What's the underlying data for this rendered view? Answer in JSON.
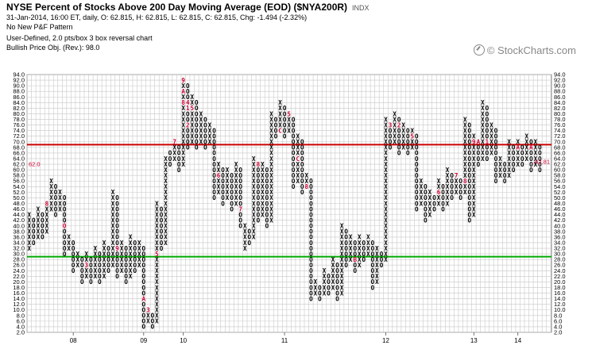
{
  "header": {
    "title": "NYSE Percent of Stocks Above 200 Day Moving Average (EOD) ($NYA200R)",
    "exchange_tag": "INDX",
    "line2": "31-Jan-2014, 16:00 ET, daily, O: 62.815, H: 62.815, L: 62.815, C: 62.815, Chg: -1.494 (-2.32%)",
    "line3": "No New P&F Pattern",
    "line4": "User-Defined, 2.0 pts/box 3 box reversal chart",
    "line5": "Bullish Price Obj. (Rev.): 98.0"
  },
  "watermark": "© StockCharts.com",
  "colors": {
    "x_mark": "#000000",
    "o_mark": "#000000",
    "month_mark": "#cc0033",
    "resistance_line": "#cc0000",
    "support_line": "#00aa00",
    "grid": "#c8c8c8",
    "last_price": "#cc0033"
  },
  "chart_data": {
    "type": "point_and_figure",
    "box_size": 2.0,
    "reversal": 3,
    "ylim": [
      2,
      94
    ],
    "y_ticks": [
      2.0,
      4.0,
      6.0,
      8.0,
      10.0,
      12.0,
      14.0,
      16.0,
      18.0,
      20.0,
      22.0,
      24.0,
      26.0,
      28.0,
      30.0,
      32.0,
      34.0,
      36.0,
      38.0,
      40.0,
      42.0,
      44.0,
      46.0,
      48.0,
      50.0,
      52.0,
      54.0,
      56.0,
      58.0,
      60.0,
      62.0,
      64.0,
      66.0,
      68.0,
      70.0,
      72.0,
      74.0,
      76.0,
      78.0,
      80.0,
      82.0,
      84.0,
      86.0,
      88.0,
      90.0,
      92.0,
      94.0
    ],
    "x_tick_labels": [
      "08",
      "09",
      "10",
      "11",
      "12",
      "13",
      "14"
    ],
    "resistance_level": 69,
    "support_level": 29,
    "last_price": 62.81,
    "left_price_label": "62.0",
    "right_price_label": "62.81",
    "columns": [
      {
        "type": "X",
        "low": 32,
        "high": 44
      },
      {
        "type": "O",
        "low": 34,
        "high": 42
      },
      {
        "type": "X",
        "low": 36,
        "high": 46
      },
      {
        "type": "O",
        "low": 36,
        "high": 44
      },
      {
        "type": "X",
        "low": 38,
        "high": 48
      },
      {
        "type": "X",
        "low": 46,
        "high": 56
      },
      {
        "type": "O",
        "low": 44,
        "high": 54
      },
      {
        "type": "X",
        "low": 46,
        "high": 52
      },
      {
        "type": "O",
        "low": 30,
        "high": 50
      },
      {
        "type": "X",
        "low": 32,
        "high": 36
      },
      {
        "type": "O",
        "low": 24,
        "high": 34
      },
      {
        "type": "X",
        "low": 26,
        "high": 30
      },
      {
        "type": "O",
        "low": 20,
        "high": 28
      },
      {
        "type": "X",
        "low": 22,
        "high": 30
      },
      {
        "type": "O",
        "low": 20,
        "high": 28
      },
      {
        "type": "X",
        "low": 22,
        "high": 32
      },
      {
        "type": "O",
        "low": 20,
        "high": 30
      },
      {
        "type": "X",
        "low": 22,
        "high": 34
      },
      {
        "type": "O",
        "low": 24,
        "high": 32
      },
      {
        "type": "X",
        "low": 26,
        "high": 52
      },
      {
        "type": "O",
        "low": 22,
        "high": 50
      },
      {
        "type": "X",
        "low": 24,
        "high": 34
      },
      {
        "type": "O",
        "low": 20,
        "high": 32
      },
      {
        "type": "X",
        "low": 22,
        "high": 36
      },
      {
        "type": "O",
        "low": 24,
        "high": 34
      },
      {
        "type": "X",
        "low": 26,
        "high": 34
      },
      {
        "type": "O",
        "low": 4,
        "high": 32
      },
      {
        "type": "X",
        "low": 6,
        "high": 10
      },
      {
        "type": "O",
        "low": 4,
        "high": 8
      },
      {
        "type": "X",
        "low": 6,
        "high": 48
      },
      {
        "type": "O",
        "low": 32,
        "high": 46
      },
      {
        "type": "X",
        "low": 34,
        "high": 64
      },
      {
        "type": "O",
        "low": 62,
        "high": 66
      },
      {
        "type": "X",
        "low": 64,
        "high": 70
      },
      {
        "type": "O",
        "low": 60,
        "high": 68
      },
      {
        "type": "X",
        "low": 62,
        "high": 92
      },
      {
        "type": "O",
        "low": 68,
        "high": 90
      },
      {
        "type": "X",
        "low": 70,
        "high": 86
      },
      {
        "type": "O",
        "low": 68,
        "high": 84
      },
      {
        "type": "X",
        "low": 70,
        "high": 80
      },
      {
        "type": "O",
        "low": 68,
        "high": 78
      },
      {
        "type": "X",
        "low": 70,
        "high": 76
      },
      {
        "type": "O",
        "low": 50,
        "high": 74
      },
      {
        "type": "X",
        "low": 52,
        "high": 62
      },
      {
        "type": "O",
        "low": 48,
        "high": 60
      },
      {
        "type": "X",
        "low": 50,
        "high": 60
      },
      {
        "type": "O",
        "low": 46,
        "high": 58
      },
      {
        "type": "X",
        "low": 48,
        "high": 62
      },
      {
        "type": "O",
        "low": 40,
        "high": 60
      },
      {
        "type": "X",
        "low": 32,
        "high": 40
      },
      {
        "type": "O",
        "low": 34,
        "high": 38
      },
      {
        "type": "X",
        "low": 36,
        "high": 64
      },
      {
        "type": "O",
        "low": 42,
        "high": 62
      },
      {
        "type": "X",
        "low": 44,
        "high": 62
      },
      {
        "type": "O",
        "low": 40,
        "high": 60
      },
      {
        "type": "X",
        "low": 42,
        "high": 80
      },
      {
        "type": "O",
        "low": 72,
        "high": 78
      },
      {
        "type": "X",
        "low": 74,
        "high": 84
      },
      {
        "type": "O",
        "low": 72,
        "high": 82
      },
      {
        "type": "X",
        "low": 74,
        "high": 80
      },
      {
        "type": "O",
        "low": 54,
        "high": 78
      },
      {
        "type": "X",
        "low": 56,
        "high": 72
      },
      {
        "type": "O",
        "low": 52,
        "high": 70
      },
      {
        "type": "X",
        "low": 54,
        "high": 58
      },
      {
        "type": "O",
        "low": 14,
        "high": 56
      },
      {
        "type": "X",
        "low": 16,
        "high": 20
      },
      {
        "type": "O",
        "low": 14,
        "high": 18
      },
      {
        "type": "X",
        "low": 16,
        "high": 24
      },
      {
        "type": "O",
        "low": 16,
        "high": 22
      },
      {
        "type": "X",
        "low": 18,
        "high": 28
      },
      {
        "type": "O",
        "low": 14,
        "high": 26
      },
      {
        "type": "X",
        "low": 16,
        "high": 40
      },
      {
        "type": "O",
        "low": 26,
        "high": 38
      },
      {
        "type": "X",
        "low": 28,
        "high": 36
      },
      {
        "type": "O",
        "low": 24,
        "high": 34
      },
      {
        "type": "X",
        "low": 26,
        "high": 36
      },
      {
        "type": "O",
        "low": 28,
        "high": 34
      },
      {
        "type": "X",
        "low": 30,
        "high": 36
      },
      {
        "type": "O",
        "low": 18,
        "high": 34
      },
      {
        "type": "X",
        "low": 20,
        "high": 32
      },
      {
        "type": "O",
        "low": 26,
        "high": 30
      },
      {
        "type": "X",
        "low": 28,
        "high": 78
      },
      {
        "type": "O",
        "low": 68,
        "high": 76
      },
      {
        "type": "X",
        "low": 70,
        "high": 80
      },
      {
        "type": "O",
        "low": 66,
        "high": 78
      },
      {
        "type": "X",
        "low": 68,
        "high": 76
      },
      {
        "type": "O",
        "low": 66,
        "high": 74
      },
      {
        "type": "X",
        "low": 68,
        "high": 74
      },
      {
        "type": "O",
        "low": 46,
        "high": 72
      },
      {
        "type": "X",
        "low": 48,
        "high": 56
      },
      {
        "type": "O",
        "low": 42,
        "high": 54
      },
      {
        "type": "X",
        "low": 44,
        "high": 52
      },
      {
        "type": "O",
        "low": 46,
        "high": 50
      },
      {
        "type": "X",
        "low": 48,
        "high": 56
      },
      {
        "type": "O",
        "low": 46,
        "high": 54
      },
      {
        "type": "X",
        "low": 48,
        "high": 60
      },
      {
        "type": "O",
        "low": 50,
        "high": 58
      },
      {
        "type": "X",
        "low": 52,
        "high": 58
      },
      {
        "type": "O",
        "low": 50,
        "high": 56
      },
      {
        "type": "X",
        "low": 52,
        "high": 78
      },
      {
        "type": "O",
        "low": 42,
        "high": 76
      },
      {
        "type": "X",
        "low": 44,
        "high": 72
      },
      {
        "type": "O",
        "low": 62,
        "high": 70
      },
      {
        "type": "X",
        "low": 64,
        "high": 84
      },
      {
        "type": "O",
        "low": 64,
        "high": 82
      },
      {
        "type": "X",
        "low": 66,
        "high": 76
      },
      {
        "type": "O",
        "low": 56,
        "high": 74
      },
      {
        "type": "X",
        "low": 58,
        "high": 64
      },
      {
        "type": "O",
        "low": 56,
        "high": 62
      },
      {
        "type": "X",
        "low": 58,
        "high": 70
      },
      {
        "type": "O",
        "low": 60,
        "high": 68
      },
      {
        "type": "X",
        "low": 62,
        "high": 70
      },
      {
        "type": "O",
        "low": 62,
        "high": 68
      },
      {
        "type": "X",
        "low": 64,
        "high": 72
      },
      {
        "type": "O",
        "low": 60,
        "high": 70
      },
      {
        "type": "X",
        "low": 62,
        "high": 70
      },
      {
        "type": "O",
        "low": 60,
        "high": 68
      }
    ],
    "month_marks": [
      {
        "col": 4,
        "level": 48,
        "label": "8"
      },
      {
        "col": 7,
        "level": 40,
        "label": "C"
      },
      {
        "col": 8,
        "level": 40,
        "label": "O"
      },
      {
        "col": 9,
        "level": 30,
        "label": "1"
      },
      {
        "col": 13,
        "level": 26,
        "label": "3"
      },
      {
        "col": 16,
        "level": 44,
        "label": "8"
      },
      {
        "col": 17,
        "level": 44,
        "label": "6"
      },
      {
        "col": 20,
        "level": 32,
        "label": "9"
      },
      {
        "col": 26,
        "level": 14,
        "label": "A"
      },
      {
        "col": 27,
        "level": 10,
        "label": "3"
      },
      {
        "col": 29,
        "level": 30,
        "label": "5"
      },
      {
        "col": 30,
        "level": 62,
        "label": "6"
      },
      {
        "col": 33,
        "level": 70,
        "label": "7"
      },
      {
        "col": 35,
        "level": 92,
        "label": "9"
      },
      {
        "col": 35,
        "level": 88,
        "label": "A"
      },
      {
        "col": 36,
        "level": 84,
        "label": "4"
      },
      {
        "col": 36,
        "level": 82,
        "label": "1"
      },
      {
        "col": 37,
        "level": 82,
        "label": "5"
      },
      {
        "col": 35,
        "level": 84,
        "label": "8"
      },
      {
        "col": 36,
        "level": 76,
        "label": "2"
      },
      {
        "col": 43,
        "level": 58,
        "label": "6"
      },
      {
        "col": 48,
        "level": 46,
        "label": "7"
      },
      {
        "col": 52,
        "level": 62,
        "label": "8"
      },
      {
        "col": 56,
        "level": 46,
        "label": "9"
      },
      {
        "col": 57,
        "level": 74,
        "label": "C"
      },
      {
        "col": 58,
        "level": 84,
        "label": "2"
      },
      {
        "col": 59,
        "level": 80,
        "label": "5"
      },
      {
        "col": 61,
        "level": 64,
        "label": "C"
      },
      {
        "col": 63,
        "level": 54,
        "label": "8"
      },
      {
        "col": 65,
        "level": 14,
        "label": "A"
      },
      {
        "col": 74,
        "level": 28,
        "label": "B"
      },
      {
        "col": 82,
        "level": 40,
        "label": "1"
      },
      {
        "col": 82,
        "level": 76,
        "label": "3"
      },
      {
        "col": 84,
        "level": 76,
        "label": "2"
      },
      {
        "col": 85,
        "level": 78,
        "label": "4"
      },
      {
        "col": 87,
        "level": 72,
        "label": "5"
      },
      {
        "col": 93,
        "level": 52,
        "label": "6"
      },
      {
        "col": 97,
        "level": 58,
        "label": "7"
      },
      {
        "col": 99,
        "level": 56,
        "label": "8"
      },
      {
        "col": 101,
        "level": 70,
        "label": "9"
      },
      {
        "col": 102,
        "level": 70,
        "label": "A"
      },
      {
        "col": 104,
        "level": 70,
        "label": "1"
      },
      {
        "col": 105,
        "level": 80,
        "label": "4"
      },
      {
        "col": 106,
        "level": 80,
        "label": "5"
      },
      {
        "col": 110,
        "level": 74,
        "label": "6"
      },
      {
        "col": 111,
        "level": 68,
        "label": "A"
      },
      {
        "col": 113,
        "level": 58,
        "label": "9"
      },
      {
        "col": 114,
        "level": 68,
        "label": "A"
      },
      {
        "col": 116,
        "level": 72,
        "label": "B"
      },
      {
        "col": 117,
        "level": 72,
        "label": "1"
      }
    ]
  }
}
